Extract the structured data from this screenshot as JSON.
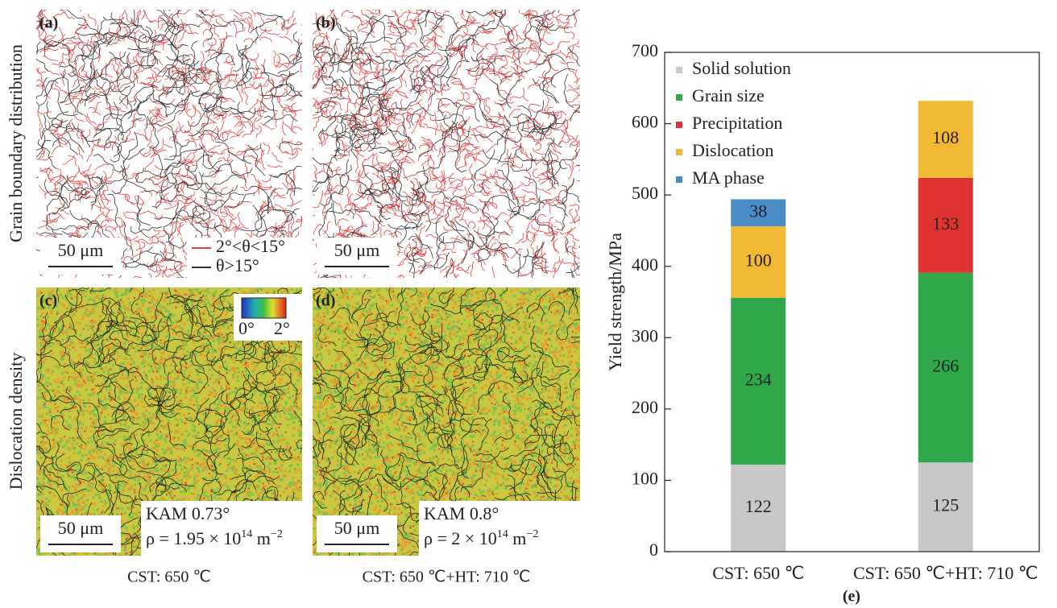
{
  "figure": {
    "row_labels": [
      "Grain boundary distribution",
      "Dislocation density"
    ],
    "column_labels": [
      "CST: 650 ℃",
      "CST: 650 ℃+HT: 710 ℃"
    ],
    "panels": [
      {
        "label": "(a)",
        "scale_bar": "50 μm"
      },
      {
        "label": "(b)",
        "scale_bar": "50 μm"
      },
      {
        "label": "(c)",
        "scale_bar": "50 μm"
      },
      {
        "label": "(d)",
        "scale_bar": "50 μm"
      }
    ],
    "boundary_legend": [
      "2°<θ<15°",
      "θ>15°"
    ],
    "colorbar_labels": [
      "0°",
      "2°"
    ],
    "kam": [
      {
        "value": "KAM 0.73°",
        "density": [
          "ρ = 1.95 × 10",
          "14",
          " m",
          "−2"
        ]
      },
      {
        "value": "KAM 0.8°",
        "density": [
          "ρ = 2 × 10",
          "14",
          " m",
          "−2"
        ]
      }
    ]
  },
  "chart_data": {
    "type": "bar",
    "stacked": true,
    "panel_label": "(e)",
    "y_label": "Yield strength/MPa",
    "categories": [
      "CST: 650 ℃",
      "CST: 650 ℃+HT: 710 ℃"
    ],
    "series": [
      {
        "name": "Solid solution",
        "color": "#c8c8c8",
        "values": [
          122,
          125
        ]
      },
      {
        "name": "Grain size",
        "color": "#2fa84b",
        "values": [
          234,
          266
        ]
      },
      {
        "name": "Precipitation",
        "color": "#e03232",
        "values": [
          null,
          133
        ]
      },
      {
        "name": "Dislocation",
        "color": "#f2b935",
        "values": [
          100,
          108
        ]
      },
      {
        "name": "MA phase",
        "color": "#4a8cc8",
        "values": [
          38,
          null
        ]
      }
    ],
    "ylim": [
      0,
      700
    ],
    "yticks": [
      0,
      100,
      200,
      300,
      400,
      500,
      600,
      700
    ],
    "legend": "upper left"
  }
}
